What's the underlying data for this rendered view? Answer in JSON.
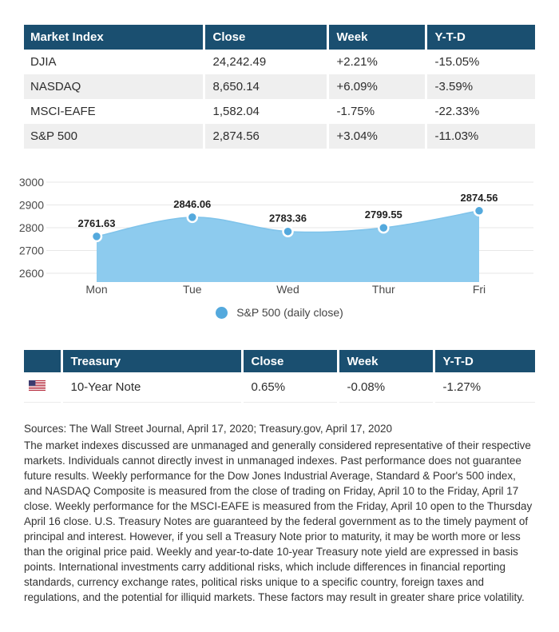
{
  "colors": {
    "header_bg": "#1a4f70",
    "row_alt_bg": "#efefef",
    "area_fill": "#8dcbee",
    "area_stroke": "#7fc3ea",
    "marker": "#54a9dd",
    "marker_ring": "#ffffff",
    "grid": "#e7e7e7",
    "axis_text": "#4a4a4a",
    "annotation_text": "#212121"
  },
  "index_table": {
    "headers": [
      "Market Index",
      "Close",
      "Week",
      "Y-T-D"
    ],
    "rows": [
      [
        "DJIA",
        "24,242.49",
        "+2.21%",
        "-15.05%"
      ],
      [
        "NASDAQ",
        "8,650.14",
        "+6.09%",
        "-3.59%"
      ],
      [
        "MSCI-EAFE",
        "1,582.04",
        "-1.75%",
        "-22.33%"
      ],
      [
        "S&P 500",
        "2,874.56",
        "+3.04%",
        "-11.03%"
      ]
    ]
  },
  "chart_data": {
    "type": "area",
    "title": "",
    "categories": [
      "Mon",
      "Tue",
      "Wed",
      "Thur",
      "Fri"
    ],
    "series": [
      {
        "name": "S&P 500 (daily close)",
        "values": [
          2761.63,
          2846.06,
          2783.36,
          2799.55,
          2874.56
        ]
      }
    ],
    "point_labels": [
      "2761.63",
      "2846.06",
      "2783.36",
      "2799.55",
      "2874.56"
    ],
    "yticks": [
      2600,
      2700,
      2800,
      2900,
      3000
    ],
    "ylim": [
      2575,
      3050
    ],
    "xlabel": "",
    "ylabel": "",
    "grid": true,
    "legend_position": "bottom"
  },
  "legend": {
    "label": "S&P 500 (daily close)"
  },
  "treasury_table": {
    "headers": [
      "",
      "Treasury",
      "Close",
      "Week",
      "Y-T-D"
    ],
    "rows": [
      [
        "us-flag-icon",
        "10-Year Note",
        "0.65%",
        "-0.08%",
        "-1.27%"
      ]
    ]
  },
  "footer": {
    "sources": "Sources: The Wall Street Journal, April 17, 2020; Treasury.gov, April 17, 2020",
    "disclaimer": "The market indexes discussed are unmanaged and generally considered representative of their respective markets. Individuals cannot directly invest in unmanaged indexes. Past performance does not guarantee future results. Weekly performance for the Dow Jones Industrial Average, Standard & Poor's 500 index, and NASDAQ Composite is measured from the close of trading on Friday, April 10 to the Friday, April 17 close. Weekly performance for the MSCI-EAFE is measured from the Friday, April 10 open to the Thursday April 16 close. U.S. Treasury Notes are guaranteed by the federal government as to the timely payment of principal and interest. However, if you sell a Treasury Note prior to maturity, it may be worth more or less than the original price paid. Weekly and year-to-date 10-year Treasury note yield are expressed in basis points. International investments carry additional risks, which include differences in financial reporting standards, currency exchange rates, political risks unique to a specific country, foreign taxes and regulations, and the potential for illiquid markets. These factors may result in greater share price volatility."
  }
}
